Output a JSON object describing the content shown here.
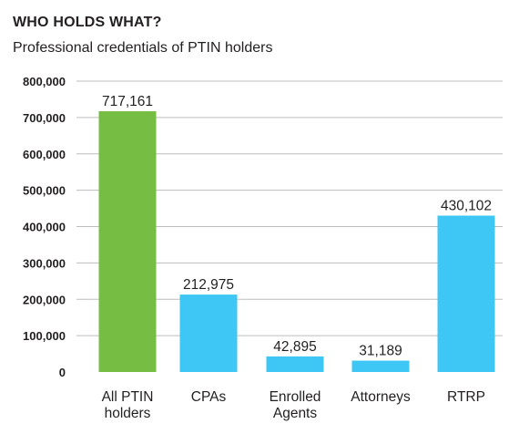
{
  "chart_data": {
    "type": "bar",
    "title": "WHO HOLDS WHAT?",
    "subtitle": "Professional credentials of PTIN holders",
    "categories": [
      "All PTIN holders",
      "CPAs",
      "Enrolled Agents",
      "Attorneys",
      "RTRP"
    ],
    "category_lines": [
      [
        "All PTIN",
        "holders"
      ],
      [
        "CPAs"
      ],
      [
        "Enrolled",
        "Agents"
      ],
      [
        "Attorneys"
      ],
      [
        "RTRP"
      ]
    ],
    "values": [
      717161,
      212975,
      42895,
      31189,
      430102
    ],
    "value_labels": [
      "717,161",
      "212,975",
      "42,895",
      "31,189",
      "430,102"
    ],
    "colors": [
      "#76bd43",
      "#3ec7f4",
      "#3ec7f4",
      "#3ec7f4",
      "#3ec7f4"
    ],
    "ylim": [
      0,
      800000
    ],
    "yticks": [
      0,
      100000,
      200000,
      300000,
      400000,
      500000,
      600000,
      700000,
      800000
    ],
    "ytick_labels": [
      "0",
      "100,000",
      "200,000",
      "300,000",
      "400,000",
      "500,000",
      "600,000",
      "700,000",
      "800,000"
    ],
    "grid": true,
    "gridline_color": "#bdbdbd"
  }
}
